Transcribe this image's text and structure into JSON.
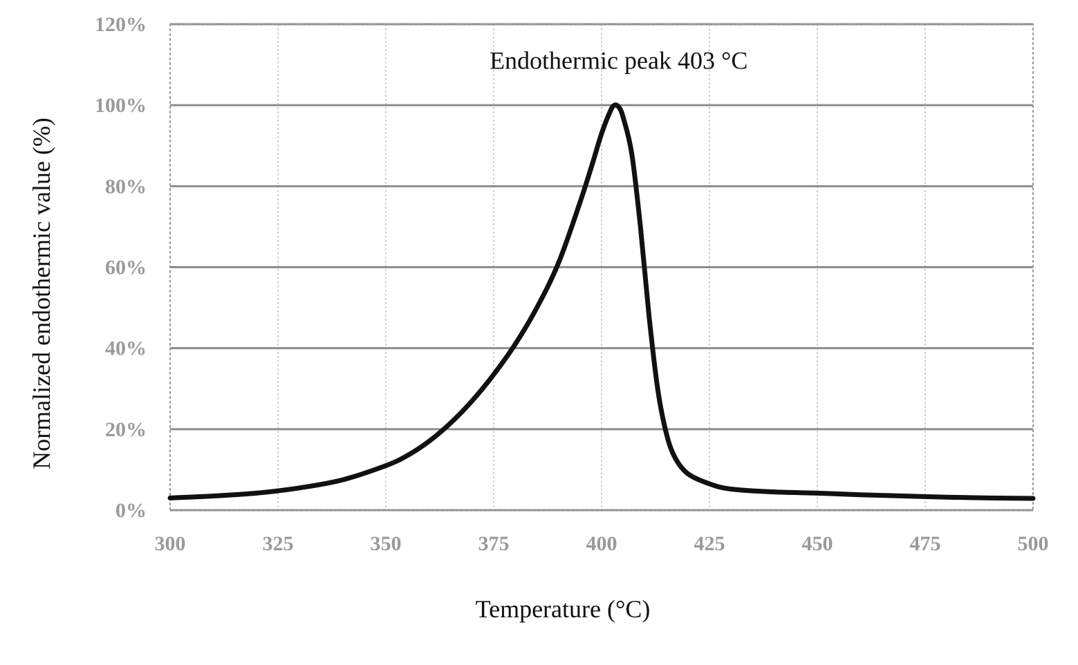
{
  "chart_data": {
    "type": "line",
    "title": "",
    "xlabel": "Temperature (°C)",
    "ylabel": "Normalized endothermic value (%)",
    "xlim": [
      300,
      500
    ],
    "ylim": [
      0,
      120
    ],
    "grid": true,
    "x_ticks": [
      300,
      325,
      350,
      375,
      400,
      425,
      450,
      475,
      500
    ],
    "x_tick_labels": [
      "300",
      "325",
      "350",
      "375",
      "400",
      "425",
      "450",
      "475",
      "500"
    ],
    "y_ticks": [
      0,
      20,
      40,
      60,
      80,
      100,
      120
    ],
    "y_tick_labels": [
      "0%",
      "20%",
      "40%",
      "60%",
      "80%",
      "100%",
      "120%"
    ],
    "annotations": [
      {
        "text": "Endothermic peak 403 °C",
        "x": 403,
        "y": 111
      }
    ],
    "series": [
      {
        "color": "#111111",
        "points": [
          [
            300,
            3
          ],
          [
            310,
            3.5
          ],
          [
            320,
            4.2
          ],
          [
            330,
            5.5
          ],
          [
            340,
            7.5
          ],
          [
            350,
            11
          ],
          [
            355,
            13.5
          ],
          [
            360,
            17
          ],
          [
            365,
            21.5
          ],
          [
            370,
            27
          ],
          [
            375,
            33.5
          ],
          [
            380,
            41
          ],
          [
            385,
            50
          ],
          [
            390,
            61
          ],
          [
            395,
            76
          ],
          [
            398,
            86
          ],
          [
            400,
            93
          ],
          [
            402,
            98.5
          ],
          [
            403,
            100
          ],
          [
            404,
            99.5
          ],
          [
            405,
            97
          ],
          [
            407,
            88
          ],
          [
            409,
            70
          ],
          [
            411,
            48
          ],
          [
            413,
            30
          ],
          [
            415,
            19
          ],
          [
            417,
            13
          ],
          [
            420,
            9
          ],
          [
            425,
            6.5
          ],
          [
            430,
            5.2
          ],
          [
            440,
            4.5
          ],
          [
            450,
            4.2
          ],
          [
            460,
            3.8
          ],
          [
            470,
            3.5
          ],
          [
            480,
            3.2
          ],
          [
            490,
            3
          ],
          [
            500,
            2.9
          ]
        ]
      }
    ]
  }
}
